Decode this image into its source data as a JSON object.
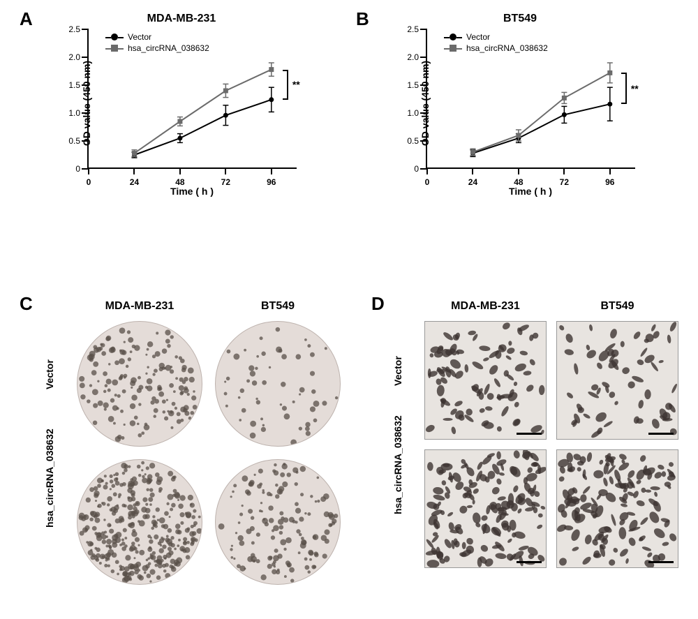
{
  "figure": {
    "panels": {
      "A": {
        "label": "A",
        "chart": {
          "type": "line",
          "title": "MDA-MB-231",
          "ylabel": "OD value (450 nm)",
          "xlabel": "Time ( h )",
          "xlim": [
            0,
            110
          ],
          "ylim": [
            0,
            2.5
          ],
          "xticks": [
            0,
            24,
            48,
            72,
            96
          ],
          "yticks": [
            0,
            0.5,
            1.0,
            1.5,
            2.0,
            2.5
          ],
          "series": [
            {
              "name": "Vector",
              "marker": "circle",
              "color": "#000000",
              "x": [
                24,
                48,
                72,
                96
              ],
              "y": [
                0.25,
                0.55,
                0.96,
                1.24
              ],
              "err": [
                0.05,
                0.08,
                0.18,
                0.22
              ]
            },
            {
              "name": "hsa_circRNA_038632",
              "marker": "square",
              "color": "#6b6b6b",
              "x": [
                24,
                48,
                72,
                96
              ],
              "y": [
                0.28,
                0.85,
                1.4,
                1.78
              ],
              "err": [
                0.06,
                0.08,
                0.12,
                0.12
              ]
            }
          ],
          "legend": {
            "items": [
              "Vector",
              "hsa_circRNA_038632"
            ],
            "position": "upper-left-inside"
          },
          "significance": {
            "text": "**",
            "between_x": 96
          },
          "axis_fontsize": 14,
          "tick_fontsize": 12,
          "title_fontsize": 16,
          "line_width": 2,
          "marker_size": 7,
          "background_color": "#ffffff"
        }
      },
      "B": {
        "label": "B",
        "chart": {
          "type": "line",
          "title": "BT549",
          "ylabel": "OD value (450 nm)",
          "xlabel": "Time ( h )",
          "xlim": [
            0,
            110
          ],
          "ylim": [
            0,
            2.5
          ],
          "xticks": [
            0,
            24,
            48,
            72,
            96
          ],
          "yticks": [
            0,
            0.5,
            1.0,
            1.5,
            2.0,
            2.5
          ],
          "series": [
            {
              "name": "Vector",
              "marker": "circle",
              "color": "#000000",
              "x": [
                24,
                48,
                72,
                96
              ],
              "y": [
                0.28,
                0.55,
                0.97,
                1.16
              ],
              "err": [
                0.06,
                0.08,
                0.15,
                0.3
              ]
            },
            {
              "name": "hsa_circRNA_038632",
              "marker": "square",
              "color": "#6b6b6b",
              "x": [
                24,
                48,
                72,
                96
              ],
              "y": [
                0.3,
                0.6,
                1.27,
                1.72
              ],
              "err": [
                0.06,
                0.1,
                0.1,
                0.18
              ]
            }
          ],
          "legend": {
            "items": [
              "Vector",
              "hsa_circRNA_038632"
            ],
            "position": "upper-left-inside"
          },
          "significance": {
            "text": "**",
            "between_x": 96
          },
          "axis_fontsize": 14,
          "tick_fontsize": 12,
          "title_fontsize": 16,
          "line_width": 2,
          "marker_size": 7,
          "background_color": "#ffffff"
        }
      },
      "C": {
        "label": "C",
        "type": "image-grid",
        "assay": "colony-formation",
        "columns": [
          "MDA-MB-231",
          "BT549"
        ],
        "rows": [
          "Vector",
          "hsa_circRNA_038632"
        ],
        "image_shape": "circle",
        "relative_density": [
          [
            1.0,
            0.35
          ],
          [
            2.2,
            0.9
          ]
        ],
        "dot_color": "#595049",
        "background_color": "#e4dcd8"
      },
      "D": {
        "label": "D",
        "type": "image-grid",
        "assay": "transwell-invasion",
        "columns": [
          "MDA-MB-231",
          "BT549"
        ],
        "rows": [
          "Vector",
          "hsa_circRNA_038632"
        ],
        "image_shape": "rect",
        "relative_density": [
          [
            1.0,
            0.7
          ],
          [
            1.7,
            1.5
          ]
        ],
        "cell_color": "#3d3532",
        "background_color": "#e8e4e0",
        "scalebar": true
      }
    }
  }
}
